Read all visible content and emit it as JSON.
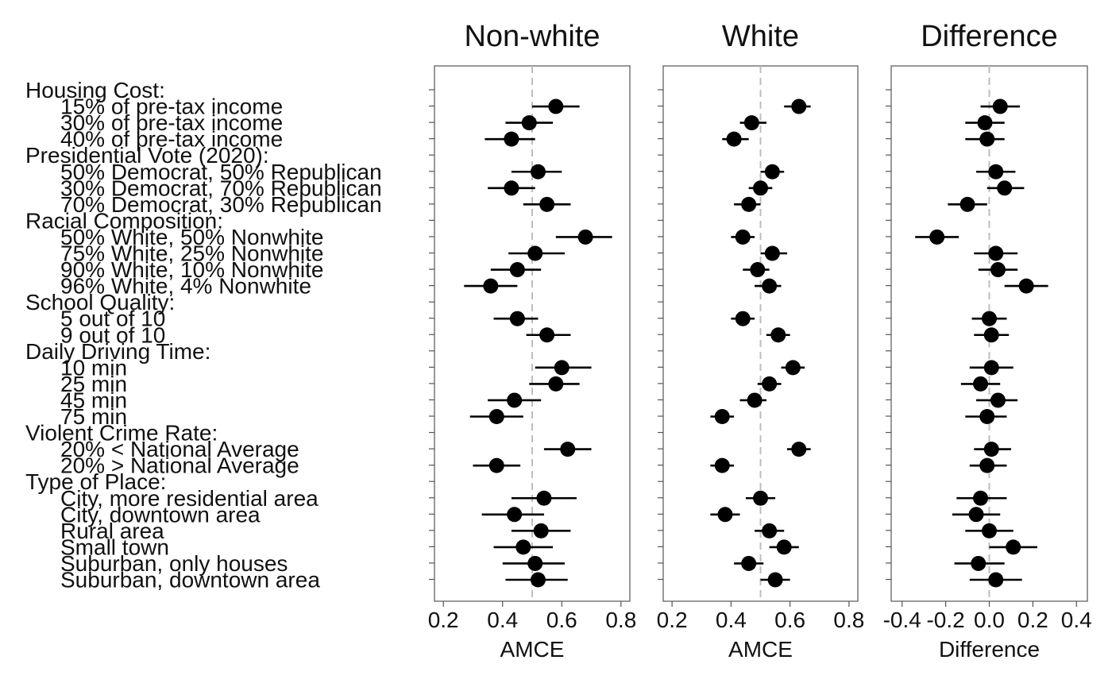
{
  "chart_data": {
    "type": "scatter",
    "rows": [
      {
        "label": "Housing Cost:",
        "header": true
      },
      {
        "label": "15% of pre-tax income",
        "header": false
      },
      {
        "label": "30% of pre-tax income",
        "header": false
      },
      {
        "label": "40% of pre-tax income",
        "header": false
      },
      {
        "label": "Presidential Vote (2020):",
        "header": true
      },
      {
        "label": "50% Democrat, 50% Republican",
        "header": false
      },
      {
        "label": "30% Democrat, 70% Republican",
        "header": false
      },
      {
        "label": "70% Democrat, 30% Republican",
        "header": false
      },
      {
        "label": "Racial Composition:",
        "header": true
      },
      {
        "label": "50% White, 50% Nonwhite",
        "header": false
      },
      {
        "label": "75% White, 25% Nonwhite",
        "header": false
      },
      {
        "label": "90% White, 10% Nonwhite",
        "header": false
      },
      {
        "label": "96% White, 4% Nonwhite",
        "header": false
      },
      {
        "label": "School Quality:",
        "header": true
      },
      {
        "label": "5 out of 10",
        "header": false
      },
      {
        "label": "9 out of 10",
        "header": false
      },
      {
        "label": "Daily Driving Time:",
        "header": true
      },
      {
        "label": "10 min",
        "header": false
      },
      {
        "label": "25 min",
        "header": false
      },
      {
        "label": "45 min",
        "header": false
      },
      {
        "label": "75 min",
        "header": false
      },
      {
        "label": "Violent Crime Rate:",
        "header": true
      },
      {
        "label": "20% < National Average",
        "header": false
      },
      {
        "label": "20% > National Average",
        "header": false
      },
      {
        "label": "Type of Place:",
        "header": true
      },
      {
        "label": "City, more residential area",
        "header": false
      },
      {
        "label": "City, downtown area",
        "header": false
      },
      {
        "label": "Rural area",
        "header": false
      },
      {
        "label": "Small town",
        "header": false
      },
      {
        "label": "Suburban, only houses",
        "header": false
      },
      {
        "label": "Suburban, downtown area",
        "header": false
      }
    ],
    "panels": [
      {
        "title": "Non-white",
        "xlabel": "AMCE",
        "xlim": [
          0.17,
          0.83
        ],
        "ticks": [
          0.2,
          0.4,
          0.6,
          0.8
        ],
        "tick_labels": [
          "0.2",
          "0.4",
          "0.6",
          "0.8"
        ],
        "reference_line": 0.5,
        "points": [
          null,
          {
            "est": 0.58,
            "lo": 0.5,
            "hi": 0.66
          },
          {
            "est": 0.49,
            "lo": 0.41,
            "hi": 0.57
          },
          {
            "est": 0.43,
            "lo": 0.34,
            "hi": 0.51
          },
          null,
          {
            "est": 0.52,
            "lo": 0.43,
            "hi": 0.6
          },
          {
            "est": 0.43,
            "lo": 0.35,
            "hi": 0.51
          },
          {
            "est": 0.55,
            "lo": 0.47,
            "hi": 0.63
          },
          null,
          {
            "est": 0.68,
            "lo": 0.58,
            "hi": 0.77
          },
          {
            "est": 0.51,
            "lo": 0.42,
            "hi": 0.61
          },
          {
            "est": 0.45,
            "lo": 0.36,
            "hi": 0.53
          },
          {
            "est": 0.36,
            "lo": 0.27,
            "hi": 0.45
          },
          null,
          {
            "est": 0.45,
            "lo": 0.37,
            "hi": 0.52
          },
          {
            "est": 0.55,
            "lo": 0.48,
            "hi": 0.63
          },
          null,
          {
            "est": 0.6,
            "lo": 0.51,
            "hi": 0.7
          },
          {
            "est": 0.58,
            "lo": 0.49,
            "hi": 0.66
          },
          {
            "est": 0.44,
            "lo": 0.35,
            "hi": 0.53
          },
          {
            "est": 0.38,
            "lo": 0.29,
            "hi": 0.47
          },
          null,
          {
            "est": 0.62,
            "lo": 0.54,
            "hi": 0.7
          },
          {
            "est": 0.38,
            "lo": 0.3,
            "hi": 0.46
          },
          null,
          {
            "est": 0.54,
            "lo": 0.43,
            "hi": 0.65
          },
          {
            "est": 0.44,
            "lo": 0.33,
            "hi": 0.54
          },
          {
            "est": 0.53,
            "lo": 0.43,
            "hi": 0.63
          },
          {
            "est": 0.47,
            "lo": 0.37,
            "hi": 0.57
          },
          {
            "est": 0.51,
            "lo": 0.4,
            "hi": 0.61
          },
          {
            "est": 0.52,
            "lo": 0.41,
            "hi": 0.62
          }
        ]
      },
      {
        "title": "White",
        "xlabel": "AMCE",
        "xlim": [
          0.17,
          0.83
        ],
        "ticks": [
          0.2,
          0.4,
          0.6,
          0.8
        ],
        "tick_labels": [
          "0.2",
          "0.4",
          "0.6",
          "0.8"
        ],
        "reference_line": 0.5,
        "points": [
          null,
          {
            "est": 0.63,
            "lo": 0.58,
            "hi": 0.67
          },
          {
            "est": 0.47,
            "lo": 0.43,
            "hi": 0.52
          },
          {
            "est": 0.41,
            "lo": 0.37,
            "hi": 0.46
          },
          null,
          {
            "est": 0.54,
            "lo": 0.5,
            "hi": 0.58
          },
          {
            "est": 0.5,
            "lo": 0.46,
            "hi": 0.54
          },
          {
            "est": 0.46,
            "lo": 0.41,
            "hi": 0.5
          },
          null,
          {
            "est": 0.44,
            "lo": 0.4,
            "hi": 0.48
          },
          {
            "est": 0.54,
            "lo": 0.5,
            "hi": 0.59
          },
          {
            "est": 0.49,
            "lo": 0.44,
            "hi": 0.53
          },
          {
            "est": 0.53,
            "lo": 0.48,
            "hi": 0.57
          },
          null,
          {
            "est": 0.44,
            "lo": 0.4,
            "hi": 0.48
          },
          {
            "est": 0.56,
            "lo": 0.52,
            "hi": 0.6
          },
          null,
          {
            "est": 0.61,
            "lo": 0.57,
            "hi": 0.65
          },
          {
            "est": 0.53,
            "lo": 0.49,
            "hi": 0.57
          },
          {
            "est": 0.48,
            "lo": 0.43,
            "hi": 0.52
          },
          {
            "est": 0.37,
            "lo": 0.33,
            "hi": 0.41
          },
          null,
          {
            "est": 0.63,
            "lo": 0.59,
            "hi": 0.67
          },
          {
            "est": 0.37,
            "lo": 0.33,
            "hi": 0.41
          },
          null,
          {
            "est": 0.5,
            "lo": 0.45,
            "hi": 0.55
          },
          {
            "est": 0.38,
            "lo": 0.33,
            "hi": 0.43
          },
          {
            "est": 0.53,
            "lo": 0.48,
            "hi": 0.58
          },
          {
            "est": 0.58,
            "lo": 0.53,
            "hi": 0.63
          },
          {
            "est": 0.46,
            "lo": 0.41,
            "hi": 0.51
          },
          {
            "est": 0.55,
            "lo": 0.5,
            "hi": 0.6
          }
        ]
      },
      {
        "title": "Difference",
        "xlabel": "Difference",
        "xlim": [
          -0.45,
          0.45
        ],
        "ticks": [
          -0.4,
          -0.2,
          0.0,
          0.2,
          0.4
        ],
        "tick_labels": [
          "-0.4",
          "-0.2",
          "0.0",
          "0.2",
          "0.4"
        ],
        "reference_line": 0.0,
        "points": [
          null,
          {
            "est": 0.05,
            "lo": -0.04,
            "hi": 0.14
          },
          {
            "est": -0.02,
            "lo": -0.11,
            "hi": 0.07
          },
          {
            "est": -0.01,
            "lo": -0.11,
            "hi": 0.07
          },
          null,
          {
            "est": 0.03,
            "lo": -0.06,
            "hi": 0.12
          },
          {
            "est": 0.07,
            "lo": -0.01,
            "hi": 0.16
          },
          {
            "est": -0.1,
            "lo": -0.19,
            "hi": -0.01
          },
          null,
          {
            "est": -0.24,
            "lo": -0.34,
            "hi": -0.14
          },
          {
            "est": 0.03,
            "lo": -0.07,
            "hi": 0.13
          },
          {
            "est": 0.04,
            "lo": -0.05,
            "hi": 0.13
          },
          {
            "est": 0.17,
            "lo": 0.07,
            "hi": 0.27
          },
          null,
          {
            "est": 0.0,
            "lo": -0.08,
            "hi": 0.08
          },
          {
            "est": 0.01,
            "lo": -0.07,
            "hi": 0.09
          },
          null,
          {
            "est": 0.01,
            "lo": -0.09,
            "hi": 0.11
          },
          {
            "est": -0.04,
            "lo": -0.13,
            "hi": 0.05
          },
          {
            "est": 0.04,
            "lo": -0.06,
            "hi": 0.13
          },
          {
            "est": -0.01,
            "lo": -0.11,
            "hi": 0.08
          },
          null,
          {
            "est": 0.01,
            "lo": -0.07,
            "hi": 0.1
          },
          {
            "est": -0.01,
            "lo": -0.09,
            "hi": 0.08
          },
          null,
          {
            "est": -0.04,
            "lo": -0.15,
            "hi": 0.08
          },
          {
            "est": -0.06,
            "lo": -0.17,
            "hi": 0.05
          },
          {
            "est": 0.0,
            "lo": -0.11,
            "hi": 0.11
          },
          {
            "est": 0.11,
            "lo": 0.0,
            "hi": 0.22
          },
          {
            "est": -0.05,
            "lo": -0.16,
            "hi": 0.07
          },
          {
            "est": 0.03,
            "lo": -0.09,
            "hi": 0.15
          }
        ]
      }
    ],
    "grid": false,
    "legend": "none",
    "colors": {
      "point": "#000000",
      "reference_line": "#bdbdbd",
      "frame": "#555555"
    }
  }
}
